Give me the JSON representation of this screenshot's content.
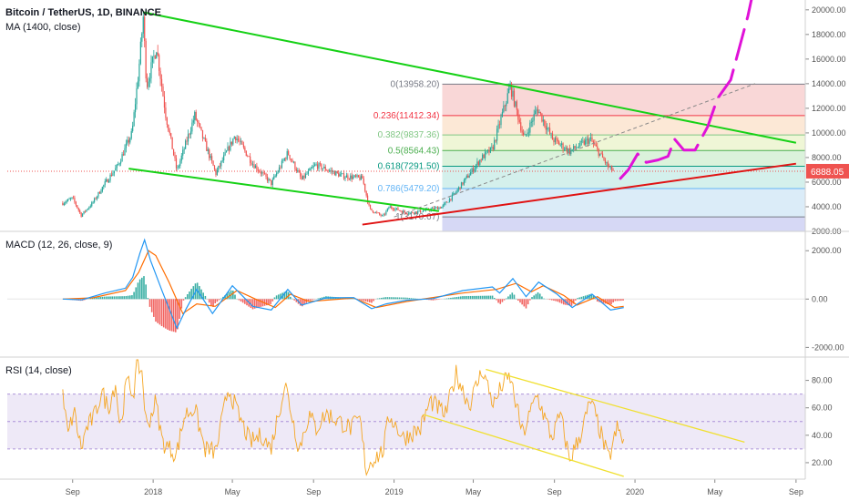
{
  "colors": {
    "candle_up": "#26a69a",
    "candle_down": "#ef5350",
    "ma": "#2196f3",
    "channel": "#16d116",
    "support": "#e01313",
    "projection": "#e012d8",
    "fib_range": "#888888",
    "macd_line": "#2196f3",
    "signal_line": "#ff6d00",
    "rsi_line": "#f5a623",
    "rsi_band": "#7e57c2",
    "rsi_channel": "#f0e030",
    "last_price_tag": "#ef5350"
  },
  "chart_data": [
    {
      "type": "candlestick",
      "title": "Bitcoin / TetherUS, 1D, BINANCE",
      "indicator_label": "MA (1400, close)",
      "ylim": [
        2000,
        20800
      ],
      "y_ticks": [
        "20000.00",
        "18000.00",
        "16000.00",
        "14000.00",
        "12000.00",
        "10000.00",
        "8000.00",
        "6000.00",
        "4000.00",
        "2000.00"
      ],
      "last_price": "6888.05",
      "x_start": "2017-08-17",
      "x_ticks": [
        "Sep",
        "2018",
        "May",
        "Sep",
        "2019",
        "May",
        "Sep",
        "2020",
        "May",
        "Sep"
      ],
      "price_path": [
        [
          "2017-08-17",
          4300
        ],
        [
          "2017-09-01",
          4700
        ],
        [
          "2017-09-14",
          3300
        ],
        [
          "2017-10-01",
          4300
        ],
        [
          "2017-10-20",
          5900
        ],
        [
          "2017-11-08",
          7300
        ],
        [
          "2017-11-30",
          10000
        ],
        [
          "2017-12-10",
          15000
        ],
        [
          "2017-12-17",
          19400
        ],
        [
          "2017-12-22",
          13800
        ],
        [
          "2018-01-06",
          17000
        ],
        [
          "2018-01-20",
          11500
        ],
        [
          "2018-02-06",
          6900
        ],
        [
          "2018-03-05",
          11400
        ],
        [
          "2018-04-06",
          6700
        ],
        [
          "2018-05-05",
          9800
        ],
        [
          "2018-06-01",
          7500
        ],
        [
          "2018-06-29",
          5900
        ],
        [
          "2018-07-24",
          8400
        ],
        [
          "2018-08-14",
          6200
        ],
        [
          "2018-09-04",
          7400
        ],
        [
          "2018-10-15",
          6500
        ],
        [
          "2018-11-14",
          6300
        ],
        [
          "2018-11-25",
          3800
        ],
        [
          "2018-12-15",
          3200
        ],
        [
          "2018-12-25",
          4000
        ],
        [
          "2019-01-20",
          3500
        ],
        [
          "2019-02-08",
          3600
        ],
        [
          "2019-03-15",
          4000
        ],
        [
          "2019-04-02",
          5000
        ],
        [
          "2019-05-14",
          8000
        ],
        [
          "2019-05-30",
          8700
        ],
        [
          "2019-06-26",
          13800
        ],
        [
          "2019-07-17",
          9500
        ],
        [
          "2019-08-06",
          12000
        ],
        [
          "2019-08-29",
          9500
        ],
        [
          "2019-09-24",
          8500
        ],
        [
          "2019-10-25",
          9500
        ],
        [
          "2019-11-22",
          7200
        ],
        [
          "2019-11-30",
          6888
        ]
      ],
      "fibonacci": [
        {
          "label": "0(13958.20)",
          "value": 13958.2,
          "color": "#787b86"
        },
        {
          "label": "0.236(11412.34)",
          "value": 11412.34,
          "color": "#f23645"
        },
        {
          "label": "0.382(9837.36)",
          "value": 9837.36,
          "color": "#81c784"
        },
        {
          "label": "0.5(8564.43)",
          "value": 8564.43,
          "color": "#4caf50"
        },
        {
          "label": "0.618(7291.50)",
          "value": 7291.5,
          "color": "#089981"
        },
        {
          "label": "0.786(5479.20)",
          "value": 5479.2,
          "color": "#64b5f6"
        },
        {
          "label": "1(3170.67)",
          "value": 3170.67,
          "color": "#787b86"
        }
      ],
      "fib_zone_colors": [
        "#f7c9c9",
        "#fbe0c8",
        "#eaf3c8",
        "#cfeecf",
        "#c6ebe5",
        "#cfe5f6",
        "#c8cbf2"
      ],
      "channel_upper": [
        [
          "2017-12-17",
          19800
        ],
        [
          "2020-09-01",
          9200
        ]
      ],
      "channel_lower": [
        [
          "2017-11-25",
          7100
        ],
        [
          "2019-03-10",
          3650
        ]
      ],
      "support_line": [
        [
          "2018-11-14",
          2550
        ],
        [
          "2020-09-01",
          7500
        ]
      ],
      "fib_range_line": [
        [
          "2019-01-01",
          3170
        ],
        [
          "2020-07-01",
          14000
        ]
      ],
      "projection": [
        [
          "2019-12-10",
          6300
        ],
        [
          "2019-12-22",
          7000
        ],
        [
          "2020-01-05",
          8300
        ],
        [
          "2020-01-18",
          7600
        ],
        [
          "2020-02-05",
          7800
        ],
        [
          "2020-02-20",
          8100
        ],
        [
          "2020-03-01",
          9500
        ],
        [
          "2020-03-15",
          8600
        ],
        [
          "2020-04-01",
          8600
        ],
        [
          "2020-04-20",
          10500
        ],
        [
          "2020-05-05",
          12800
        ],
        [
          "2020-05-25",
          14300
        ],
        [
          "2020-06-05",
          16500
        ],
        [
          "2020-06-20",
          19500
        ],
        [
          "2020-06-28",
          21500
        ]
      ]
    },
    {
      "type": "line",
      "title": "MACD (12, 26, close, 9)",
      "ylim": [
        -2400,
        2800
      ],
      "y_ticks": [
        "2000.00",
        "0.00",
        "-2000.00"
      ],
      "macd_path": [
        [
          "2017-08-17",
          0
        ],
        [
          "2017-09-15",
          -30
        ],
        [
          "2017-10-20",
          250
        ],
        [
          "2017-11-20",
          450
        ],
        [
          "2017-12-01",
          900
        ],
        [
          "2017-12-12",
          1900
        ],
        [
          "2017-12-19",
          2450
        ],
        [
          "2017-12-28",
          1600
        ],
        [
          "2018-01-15",
          300
        ],
        [
          "2018-02-06",
          -1200
        ],
        [
          "2018-02-20",
          -400
        ],
        [
          "2018-03-08",
          400
        ],
        [
          "2018-04-01",
          -600
        ],
        [
          "2018-05-01",
          550
        ],
        [
          "2018-06-01",
          -300
        ],
        [
          "2018-06-29",
          -450
        ],
        [
          "2018-07-24",
          400
        ],
        [
          "2018-08-14",
          -250
        ],
        [
          "2018-09-20",
          50
        ],
        [
          "2018-11-01",
          60
        ],
        [
          "2018-11-28",
          -400
        ],
        [
          "2018-12-20",
          -200
        ],
        [
          "2019-01-20",
          -50
        ],
        [
          "2019-03-01",
          20
        ],
        [
          "2019-04-15",
          350
        ],
        [
          "2019-05-30",
          500
        ],
        [
          "2019-06-10",
          250
        ],
        [
          "2019-06-30",
          850
        ],
        [
          "2019-07-20",
          100
        ],
        [
          "2019-08-08",
          700
        ],
        [
          "2019-09-05",
          200
        ],
        [
          "2019-09-28",
          -350
        ],
        [
          "2019-10-28",
          200
        ],
        [
          "2019-11-25",
          -450
        ],
        [
          "2019-12-15",
          -350
        ]
      ],
      "signal_path": [
        [
          "2017-08-17",
          0
        ],
        [
          "2017-10-01",
          50
        ],
        [
          "2017-11-20",
          350
        ],
        [
          "2017-12-10",
          1100
        ],
        [
          "2017-12-25",
          2000
        ],
        [
          "2018-01-05",
          1800
        ],
        [
          "2018-01-25",
          700
        ],
        [
          "2018-02-15",
          -600
        ],
        [
          "2018-03-08",
          -200
        ],
        [
          "2018-04-05",
          -300
        ],
        [
          "2018-05-08",
          350
        ],
        [
          "2018-06-05",
          0
        ],
        [
          "2018-07-05",
          -350
        ],
        [
          "2018-07-28",
          200
        ],
        [
          "2018-08-25",
          -100
        ],
        [
          "2018-11-01",
          40
        ],
        [
          "2018-12-05",
          -350
        ],
        [
          "2019-01-20",
          -100
        ],
        [
          "2019-04-15",
          250
        ],
        [
          "2019-06-05",
          400
        ],
        [
          "2019-07-05",
          650
        ],
        [
          "2019-07-28",
          300
        ],
        [
          "2019-08-15",
          550
        ],
        [
          "2019-09-15",
          150
        ],
        [
          "2019-10-05",
          -250
        ],
        [
          "2019-11-05",
          100
        ],
        [
          "2019-12-01",
          -350
        ],
        [
          "2019-12-15",
          -300
        ]
      ]
    },
    {
      "type": "line",
      "title": "RSI (14, close)",
      "ylim": [
        8,
        97
      ],
      "y_ticks": [
        "80.00",
        "60.00",
        "40.00",
        "20.00"
      ],
      "band": [
        30,
        70
      ],
      "rsi_path": [
        [
          "2017-08-17",
          68
        ],
        [
          "2017-08-25",
          40
        ],
        [
          "2017-09-03",
          58
        ],
        [
          "2017-09-14",
          30
        ],
        [
          "2017-09-22",
          45
        ],
        [
          "2017-10-05",
          55
        ],
        [
          "2017-10-15",
          72
        ],
        [
          "2017-10-25",
          60
        ],
        [
          "2017-11-05",
          78
        ],
        [
          "2017-11-12",
          45
        ],
        [
          "2017-11-22",
          80
        ],
        [
          "2017-12-02",
          70
        ],
        [
          "2017-12-08",
          92
        ],
        [
          "2017-12-15",
          86
        ],
        [
          "2017-12-22",
          45
        ],
        [
          "2018-01-05",
          65
        ],
        [
          "2018-01-15",
          35
        ],
        [
          "2018-02-05",
          26
        ],
        [
          "2018-02-18",
          55
        ],
        [
          "2018-03-05",
          60
        ],
        [
          "2018-03-20",
          30
        ],
        [
          "2018-04-06",
          28
        ],
        [
          "2018-04-25",
          75
        ],
        [
          "2018-05-10",
          55
        ],
        [
          "2018-05-28",
          35
        ],
        [
          "2018-06-15",
          40
        ],
        [
          "2018-06-28",
          30
        ],
        [
          "2018-07-20",
          78
        ],
        [
          "2018-08-10",
          30
        ],
        [
          "2018-08-25",
          55
        ],
        [
          "2018-09-05",
          45
        ],
        [
          "2018-09-20",
          56
        ],
        [
          "2018-10-10",
          50
        ],
        [
          "2018-10-28",
          45
        ],
        [
          "2018-11-10",
          52
        ],
        [
          "2018-11-20",
          14
        ],
        [
          "2018-11-28",
          22
        ],
        [
          "2018-12-15",
          28
        ],
        [
          "2018-12-25",
          55
        ],
        [
          "2019-01-15",
          38
        ],
        [
          "2019-02-10",
          45
        ],
        [
          "2019-02-25",
          65
        ],
        [
          "2019-03-20",
          55
        ],
        [
          "2019-04-05",
          85
        ],
        [
          "2019-04-25",
          62
        ],
        [
          "2019-05-15",
          88
        ],
        [
          "2019-06-01",
          62
        ],
        [
          "2019-06-15",
          78
        ],
        [
          "2019-06-26",
          82
        ],
        [
          "2019-07-15",
          40
        ],
        [
          "2019-08-05",
          70
        ],
        [
          "2019-08-28",
          38
        ],
        [
          "2019-09-10",
          55
        ],
        [
          "2019-09-24",
          22
        ],
        [
          "2019-10-10",
          40
        ],
        [
          "2019-10-26",
          65
        ],
        [
          "2019-11-08",
          45
        ],
        [
          "2019-11-22",
          22
        ],
        [
          "2019-12-05",
          45
        ],
        [
          "2019-12-15",
          35
        ]
      ],
      "rsi_channel_upper": [
        [
          "2019-05-20",
          88
        ],
        [
          "2020-06-15",
          35
        ]
      ],
      "rsi_channel_lower": [
        [
          "2019-02-15",
          55
        ],
        [
          "2019-12-15",
          10
        ]
      ]
    }
  ]
}
